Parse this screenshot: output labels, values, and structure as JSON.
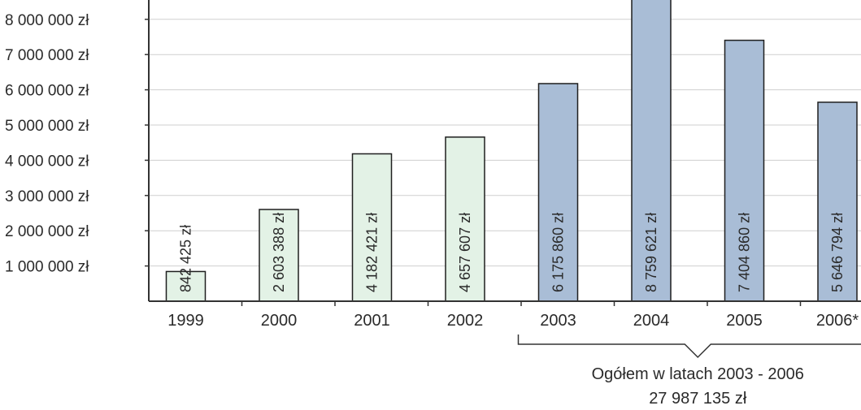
{
  "chart_data": {
    "type": "bar",
    "categories": [
      "1999",
      "2000",
      "2001",
      "2002",
      "2003",
      "2004",
      "2005",
      "2006*"
    ],
    "values": [
      842425,
      2603388,
      4182421,
      4657607,
      6175860,
      8759621,
      7404860,
      5646794
    ],
    "data_labels": [
      "842 425 zł",
      "2 603 388 zł",
      "4 182 421 zł",
      "4 657 607 zł",
      "6 175 860 zł",
      "8 759 621 zł",
      "7 404 860 zł",
      "5 646 794 zł"
    ],
    "y_ticks": [
      1000000,
      2000000,
      3000000,
      4000000,
      5000000,
      6000000,
      7000000,
      8000000
    ],
    "y_tick_labels": [
      "1 000 000 zł",
      "2 000 000 zł",
      "3 000 000 zł",
      "4 000 000 zł",
      "5 000 000 zł",
      "6 000 000 zł",
      "7 000 000 zł",
      "8 000 000 zł"
    ],
    "ylim": [
      0,
      8500000
    ],
    "grid": true,
    "bar_colors": [
      "#e3f2e6",
      "#e3f2e6",
      "#e3f2e6",
      "#e3f2e6",
      "#a9bdd6",
      "#a9bdd6",
      "#a9bdd6",
      "#a9bdd6"
    ],
    "bar_edge_color": "#1f1f1f",
    "annotation": {
      "bracket_from": "2003",
      "bracket_to": "2006*",
      "line1": "Ogółem w latach 2003 - 2006",
      "line2": "27 987 135 zł"
    }
  }
}
